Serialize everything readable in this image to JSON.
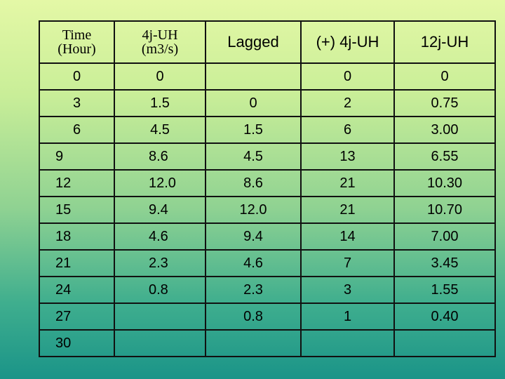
{
  "headers": {
    "time": [
      "Time",
      "(Hour)"
    ],
    "uh4": [
      "4j-UH",
      "(m3/s)"
    ],
    "lagged": "Lagged",
    "plus4": "(+) 4j-UH",
    "uh12": "12j-UH"
  },
  "rows": [
    [
      "0",
      "0",
      "",
      "0",
      "0"
    ],
    [
      "3",
      "1.5",
      "0",
      "2",
      "0.75"
    ],
    [
      "6",
      "4.5",
      "1.5",
      "6",
      "3.00"
    ],
    [
      "9",
      "8.6",
      "4.5",
      "13",
      "6.55"
    ],
    [
      "12",
      "12.0",
      "8.6",
      "21",
      "10.30"
    ],
    [
      "15",
      "9.4",
      "12.0",
      "21",
      "10.70"
    ],
    [
      "18",
      "4.6",
      "9.4",
      "14",
      "7.00"
    ],
    [
      "21",
      "2.3",
      "4.6",
      "7",
      "3.45"
    ],
    [
      "24",
      "0.8",
      "2.3",
      "3",
      "1.55"
    ],
    [
      "27",
      "",
      "0.8",
      "1",
      "0.40"
    ],
    [
      "30",
      "",
      "",
      "",
      ""
    ]
  ]
}
